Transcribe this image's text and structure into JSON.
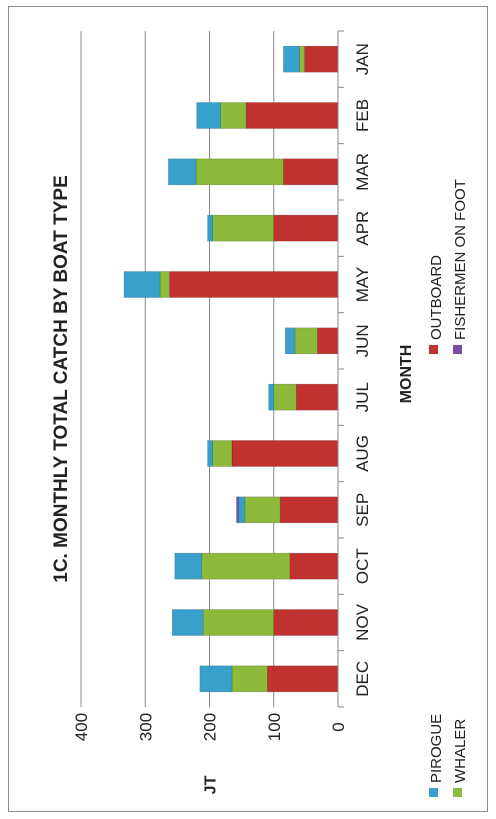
{
  "chart_data": {
    "type": "bar",
    "stacked": true,
    "orientation": "rotated",
    "title": "1C. MONTHLY TOTAL CATCH BY BOAT TYPE",
    "xlabel": "MONTH",
    "ylabel": "JT",
    "ylim": [
      0,
      400
    ],
    "yticks": [
      0,
      100,
      200,
      300,
      400
    ],
    "grid": true,
    "legend_position": "bottom",
    "categories": [
      "JAN",
      "FEB",
      "MAR",
      "APR",
      "MAY",
      "JUN",
      "JUL",
      "AUG",
      "SEP",
      "OCT",
      "NOV",
      "DEC"
    ],
    "series": [
      {
        "name": "OUTBOARD",
        "color": "#c0312f",
        "values": [
          52,
          143,
          85,
          100,
          262,
          32,
          65,
          165,
          90,
          75,
          100,
          110
        ]
      },
      {
        "name": "WHALER",
        "color": "#8dba3a",
        "values": [
          8,
          40,
          136,
          95,
          15,
          35,
          35,
          30,
          55,
          137,
          110,
          55
        ]
      },
      {
        "name": "PIROGUE",
        "color": "#37a1cc",
        "values": [
          25,
          37,
          43,
          8,
          56,
          15,
          8,
          8,
          10,
          42,
          48,
          50
        ]
      },
      {
        "name": "FISHERMEN ON FOOT",
        "color": "#7a4da3",
        "values": [
          0,
          0,
          0,
          0,
          0,
          0,
          0,
          0,
          3,
          0,
          0,
          0
        ]
      }
    ]
  }
}
